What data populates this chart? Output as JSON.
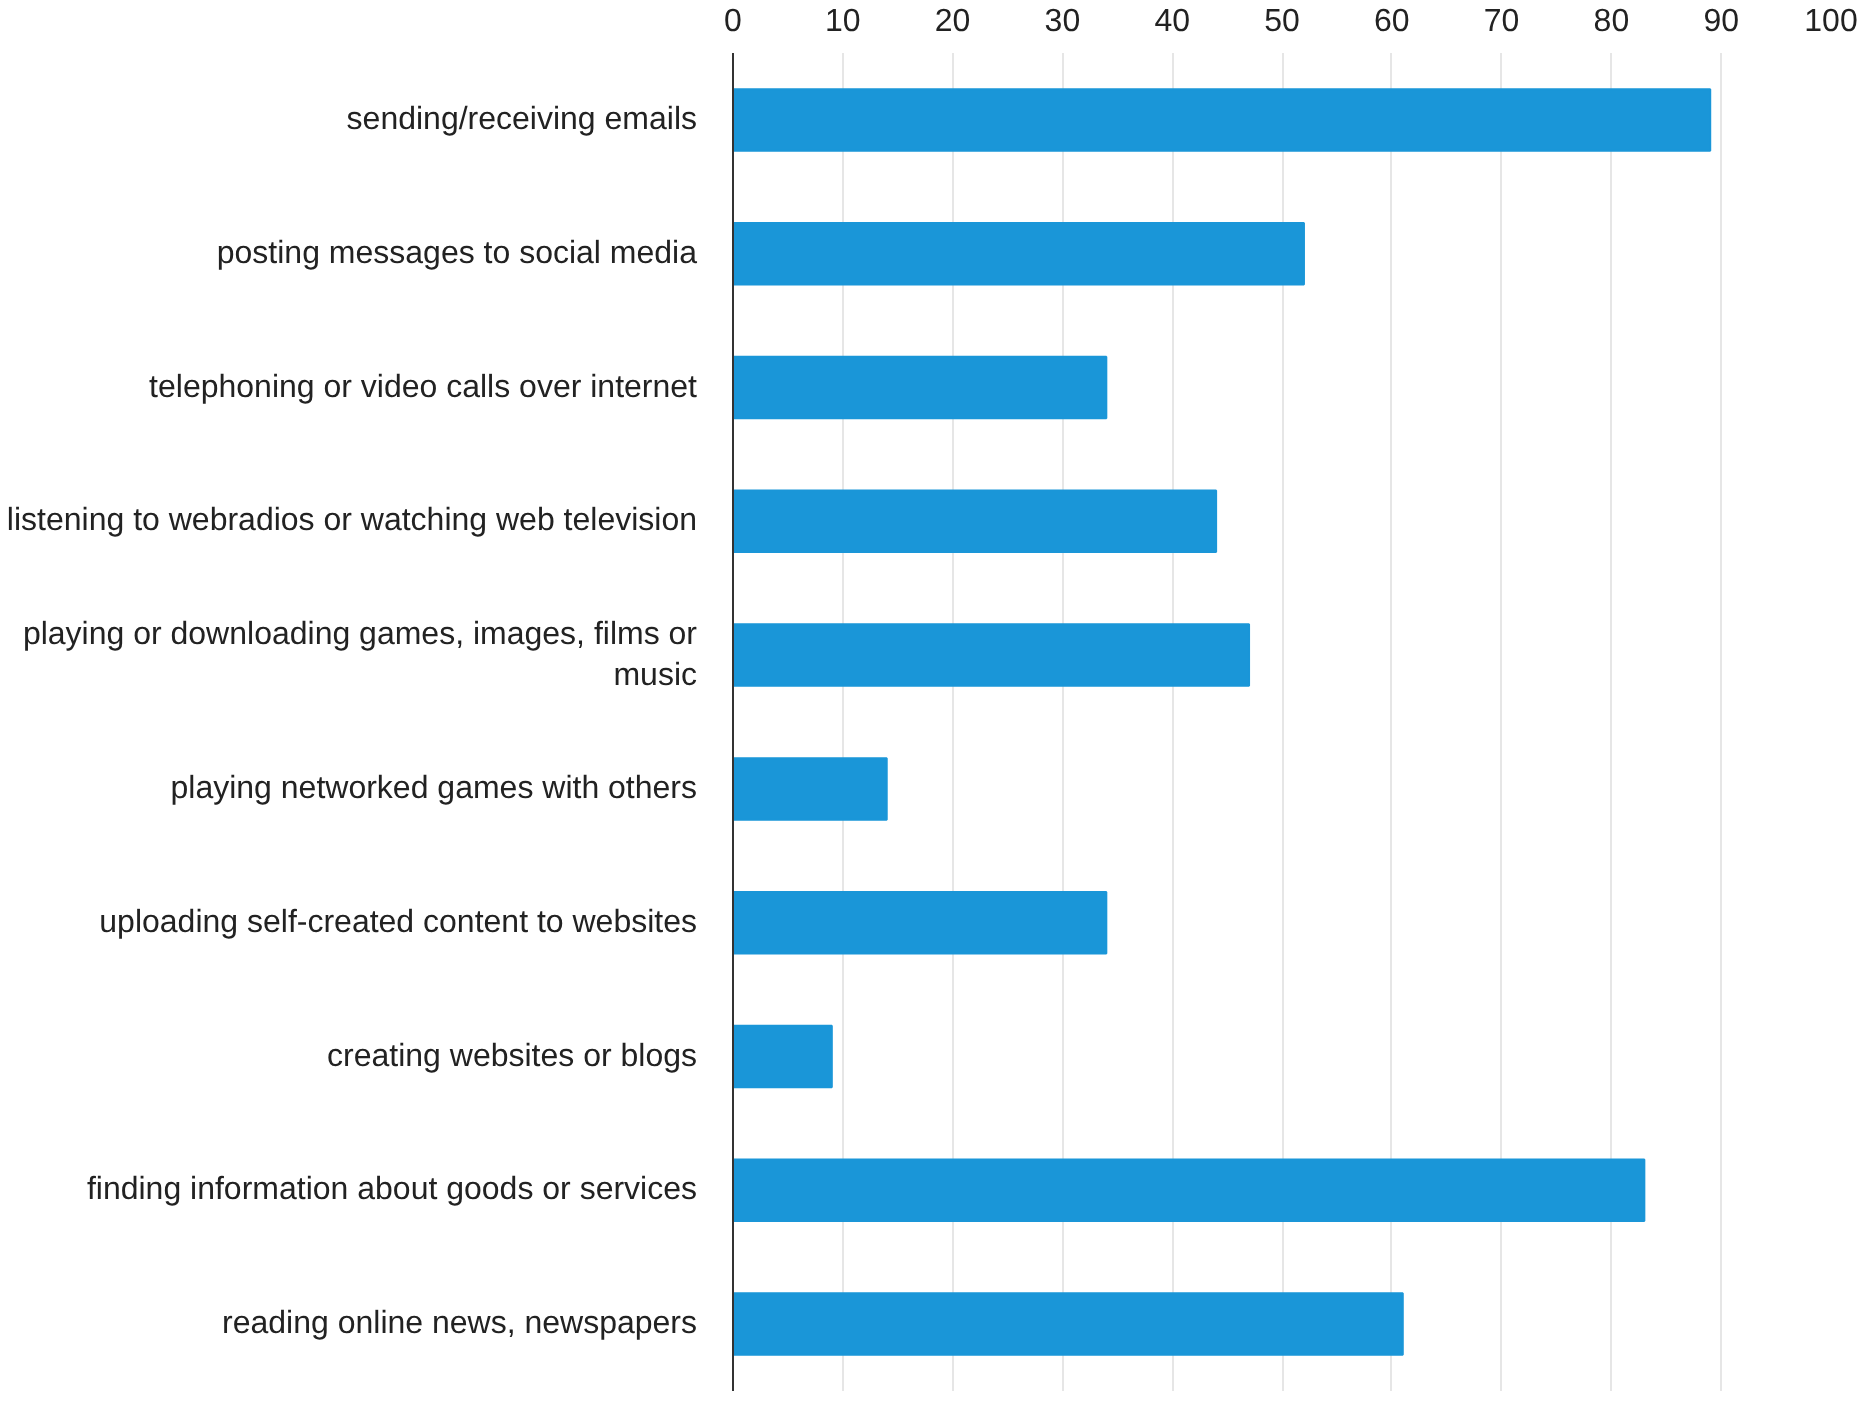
{
  "chart_data": {
    "type": "bar",
    "orientation": "horizontal",
    "categories": [
      "sending/receiving emails",
      "posting messages to social media",
      "telephoning or video calls over internet",
      "listening to webradios or watching web television",
      "playing or downloading games, images, films or music",
      "playing networked games with others",
      "uploading self-created content to websites",
      "creating websites or blogs",
      "finding information about goods or services",
      "reading online news, newspapers"
    ],
    "values": [
      89,
      52,
      34,
      44,
      47,
      14,
      34,
      9,
      83,
      61
    ],
    "color": "#1a96d8",
    "xlim": [
      0,
      100
    ],
    "xticks": [
      0,
      10,
      20,
      30,
      40,
      50,
      60,
      70,
      80,
      90,
      100
    ],
    "grid": "x"
  }
}
